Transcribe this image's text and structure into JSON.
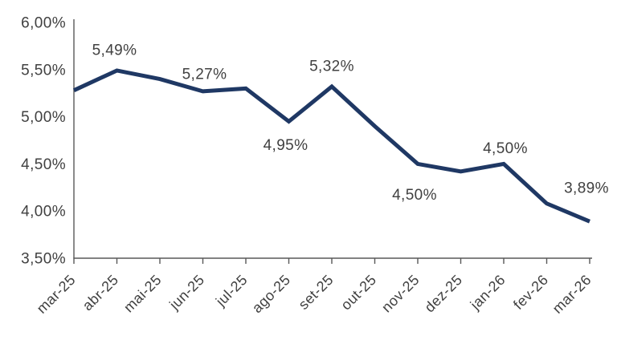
{
  "chart_data": {
    "type": "line",
    "title": "",
    "categories": [
      "mar-25",
      "abr-25",
      "mai-25",
      "jun-25",
      "jul-25",
      "ago-25",
      "set-25",
      "out-25",
      "nov-25",
      "dez-25",
      "jan-26",
      "fev-26",
      "mar-26"
    ],
    "values": [
      5.28,
      5.49,
      5.4,
      5.27,
      5.3,
      4.95,
      5.32,
      4.9,
      4.5,
      4.42,
      4.5,
      4.08,
      3.89
    ],
    "point_labels": [
      "",
      "5,49%",
      "",
      "5,27%",
      "",
      "4,95%",
      "5,32%",
      "",
      "4,50%",
      "",
      "4,50%",
      "",
      "3,89%"
    ],
    "y_tick_labels": [
      "6,00%",
      "5,50%",
      "5,00%",
      "4,50%",
      "4,00%",
      "3,50%"
    ],
    "y_tick_values": [
      6.0,
      5.5,
      5.0,
      4.5,
      4.0,
      3.5
    ],
    "ylim": [
      3.5,
      6.0
    ],
    "xlabel": "",
    "ylabel": "",
    "grid": false,
    "legend": "none",
    "line_color": "#1f3864",
    "axis_color": "#595959",
    "text_color": "#404040"
  }
}
